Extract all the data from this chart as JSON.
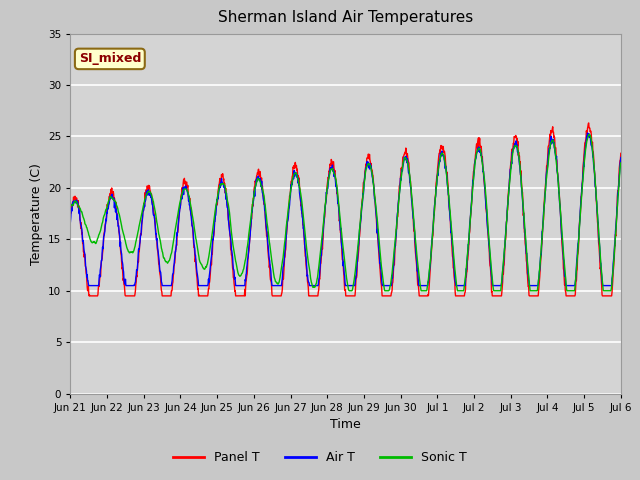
{
  "title": "Sherman Island Air Temperatures",
  "xlabel": "Time",
  "ylabel": "Temperature (C)",
  "ylim": [
    0,
    35
  ],
  "yticks": [
    0,
    5,
    10,
    15,
    20,
    25,
    30,
    35
  ],
  "fig_bg_color": "#c8c8c8",
  "plot_bg_color": "#d4d4d4",
  "annotation_text": "SI_mixed",
  "annotation_bg": "#ffffcc",
  "annotation_fg": "#8b0000",
  "legend_entries": [
    "Panel T",
    "Air T",
    "Sonic T"
  ],
  "legend_colors": [
    "red",
    "blue",
    "#00bb00"
  ],
  "line_colors": [
    "red",
    "blue",
    "#00bb00"
  ],
  "x_tick_labels": [
    "Jun 21",
    "Jun 22",
    "Jun 23",
    "Jun 24",
    "Jun 25",
    "Jun 26",
    "Jun 27",
    "Jun 28",
    "Jun 29",
    "Jun 30",
    "Jul 1",
    "Jul 2",
    "Jul 3",
    "Jul 4",
    "Jul 5",
    "Jul 6"
  ],
  "n_days": 15,
  "pts_per_day": 96
}
